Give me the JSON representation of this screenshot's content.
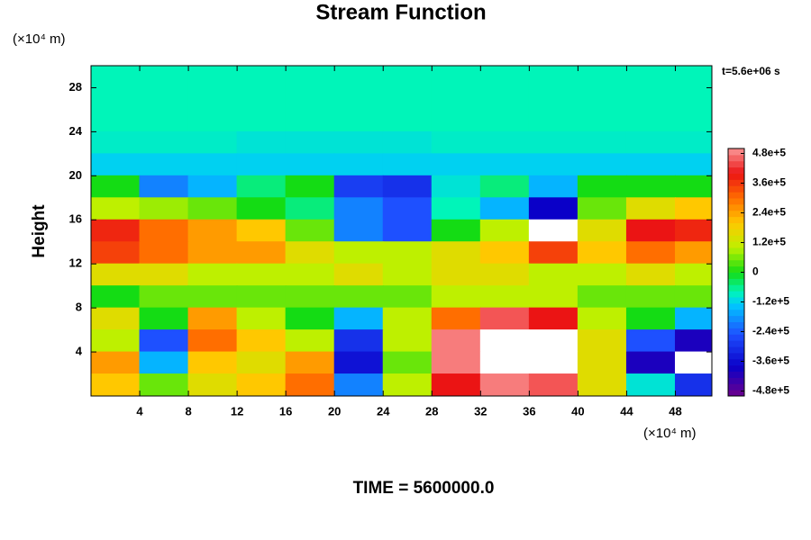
{
  "chart_data": {
    "type": "heatmap",
    "title": "Stream Function",
    "ylabel": "Height",
    "y_unit": "(×10⁴ m)",
    "x_unit": "(×10⁴ m)",
    "time_stamp": "t=5.6e+06 s",
    "footer": "TIME = 5600000.0",
    "xlim": [
      0,
      51
    ],
    "ylim": [
      0,
      30
    ],
    "xticks": [
      4,
      8,
      12,
      16,
      20,
      24,
      28,
      32,
      36,
      40,
      44,
      48
    ],
    "yticks": [
      4,
      8,
      12,
      16,
      20,
      24,
      28
    ],
    "clim": [
      -500000,
      500000
    ],
    "cticks": [
      {
        "value": 480000,
        "label": "4.8e+5"
      },
      {
        "value": 360000,
        "label": "3.6e+5"
      },
      {
        "value": 240000,
        "label": "2.4e+5"
      },
      {
        "value": 120000,
        "label": "1.2e+5"
      },
      0,
      {
        "value": -120000,
        "label": "-1.2e+5"
      },
      {
        "value": -240000,
        "label": "-2.4e+5"
      },
      {
        "value": -360000,
        "label": "-3.6e+5"
      },
      {
        "value": -480000,
        "label": "-4.8e+5"
      }
    ],
    "x": [
      2,
      6,
      10,
      14,
      18,
      22,
      26,
      30,
      34,
      38,
      42,
      46,
      50
    ],
    "y": [
      29,
      27,
      25,
      23,
      21,
      19,
      17,
      15,
      13,
      11,
      9,
      7,
      5,
      3,
      1
    ],
    "z": [
      [
        -80000,
        -80000,
        -80000,
        -80000,
        -80000,
        -80000,
        -80000,
        -80000,
        -80000,
        -80000,
        -80000,
        -80000,
        -80000
      ],
      [
        -80000,
        -80000,
        -80000,
        -80000,
        -80000,
        -80000,
        -80000,
        -80000,
        -80000,
        -80000,
        -80000,
        -80000,
        -80000
      ],
      [
        -80000,
        -80000,
        -80000,
        -80000,
        -80000,
        -80000,
        -80000,
        -80000,
        -80000,
        -80000,
        -80000,
        -80000,
        -80000
      ],
      [
        -90000,
        -90000,
        -90000,
        -100000,
        -100000,
        -100000,
        -100000,
        -90000,
        -90000,
        -90000,
        -90000,
        -90000,
        -90000
      ],
      [
        -120000,
        -120000,
        -120000,
        -120000,
        -120000,
        -120000,
        -120000,
        -120000,
        -120000,
        -120000,
        -120000,
        -120000,
        -120000
      ],
      [
        0,
        -200000,
        -150000,
        -50000,
        0,
        -280000,
        -300000,
        -100000,
        -50000,
        -150000,
        0,
        0,
        0
      ],
      [
        100000,
        80000,
        50000,
        0,
        -50000,
        -200000,
        -250000,
        -80000,
        -150000,
        -380000,
        50000,
        150000,
        200000
      ],
      [
        380000,
        300000,
        250000,
        200000,
        50000,
        -200000,
        -250000,
        0,
        100000,
        -550000,
        150000,
        400000,
        380000
      ],
      [
        350000,
        300000,
        250000,
        250000,
        150000,
        100000,
        100000,
        150000,
        200000,
        350000,
        200000,
        300000,
        250000
      ],
      [
        150000,
        150000,
        100000,
        100000,
        100000,
        150000,
        100000,
        150000,
        150000,
        100000,
        100000,
        150000,
        100000
      ],
      [
        0,
        50000,
        50000,
        50000,
        50000,
        50000,
        50000,
        100000,
        100000,
        100000,
        50000,
        50000,
        50000
      ],
      [
        150000,
        0,
        250000,
        100000,
        0,
        -150000,
        100000,
        300000,
        450000,
        400000,
        100000,
        0,
        -150000
      ],
      [
        100000,
        -250000,
        300000,
        200000,
        100000,
        -300000,
        100000,
        480000,
        600000,
        550000,
        150000,
        -250000,
        -400000
      ],
      [
        250000,
        -150000,
        200000,
        150000,
        250000,
        -350000,
        50000,
        480000,
        600000,
        600000,
        150000,
        -400000,
        -550000
      ],
      [
        200000,
        50000,
        150000,
        200000,
        300000,
        -200000,
        100000,
        400000,
        480000,
        450000,
        150000,
        -100000,
        -300000
      ]
    ]
  }
}
